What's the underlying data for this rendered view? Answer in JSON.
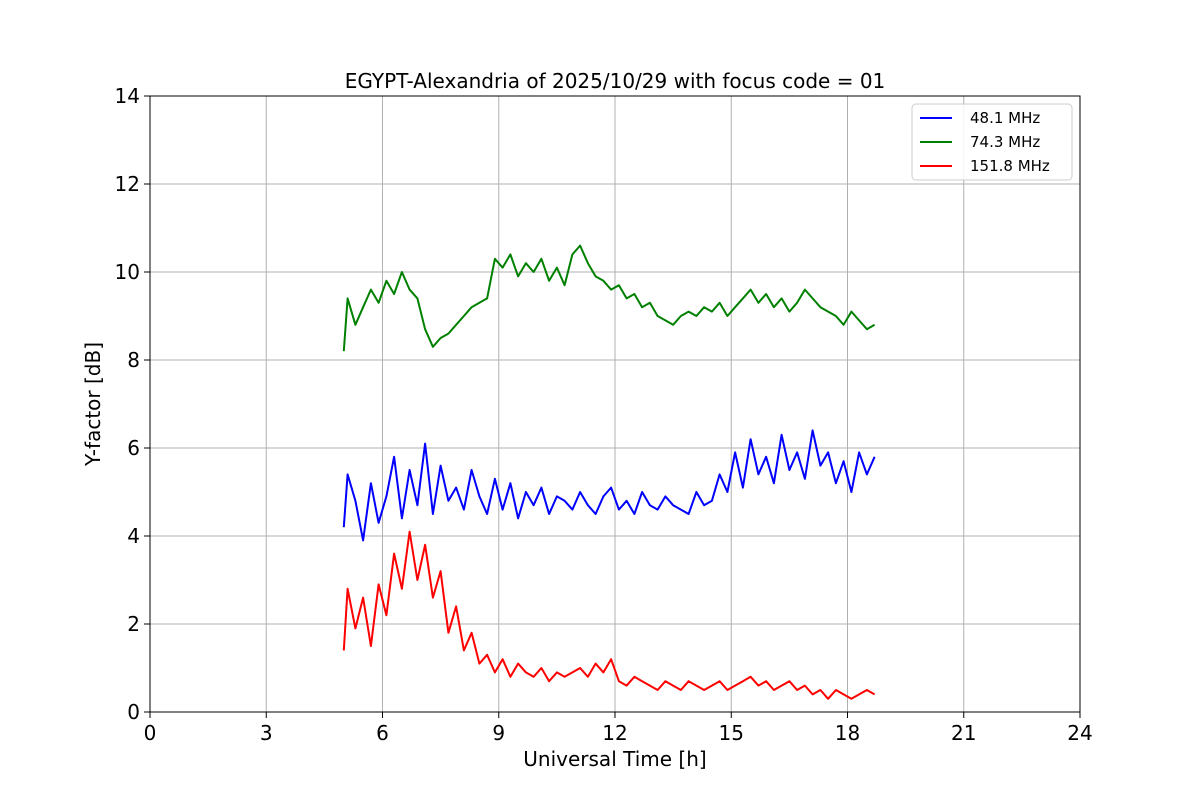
{
  "chart_data": {
    "type": "line",
    "title": "EGYPT-Alexandria of 2025/10/29 with focus code = 01",
    "xlabel": "Universal Time [h]",
    "ylabel": "Y-factor [dB]",
    "xlim": [
      0,
      24
    ],
    "ylim": [
      0,
      14
    ],
    "xticks": [
      0,
      3,
      6,
      9,
      12,
      15,
      18,
      21,
      24
    ],
    "yticks": [
      0,
      2,
      4,
      6,
      8,
      10,
      12,
      14
    ],
    "grid": true,
    "legend_position": "top-right",
    "series": [
      {
        "name": "48.1 MHz",
        "color": "#0000ff",
        "x": [
          5.0,
          5.1,
          5.3,
          5.5,
          5.7,
          5.9,
          6.1,
          6.3,
          6.5,
          6.7,
          6.9,
          7.1,
          7.3,
          7.5,
          7.7,
          7.9,
          8.1,
          8.3,
          8.5,
          8.7,
          8.9,
          9.1,
          9.3,
          9.5,
          9.7,
          9.9,
          10.1,
          10.3,
          10.5,
          10.7,
          10.9,
          11.1,
          11.3,
          11.5,
          11.7,
          11.9,
          12.1,
          12.3,
          12.5,
          12.7,
          12.9,
          13.1,
          13.3,
          13.5,
          13.7,
          13.9,
          14.1,
          14.3,
          14.5,
          14.7,
          14.9,
          15.1,
          15.3,
          15.5,
          15.7,
          15.9,
          16.1,
          16.3,
          16.5,
          16.7,
          16.9,
          17.1,
          17.3,
          17.5,
          17.7,
          17.9,
          18.1,
          18.3,
          18.5,
          18.7
        ],
        "y": [
          4.2,
          5.4,
          4.8,
          3.9,
          5.2,
          4.3,
          4.9,
          5.8,
          4.4,
          5.5,
          4.7,
          6.1,
          4.5,
          5.6,
          4.8,
          5.1,
          4.6,
          5.5,
          4.9,
          4.5,
          5.3,
          4.6,
          5.2,
          4.4,
          5.0,
          4.7,
          5.1,
          4.5,
          4.9,
          4.8,
          4.6,
          5.0,
          4.7,
          4.5,
          4.9,
          5.1,
          4.6,
          4.8,
          4.5,
          5.0,
          4.7,
          4.6,
          4.9,
          4.7,
          4.6,
          4.5,
          5.0,
          4.7,
          4.8,
          5.4,
          5.0,
          5.9,
          5.1,
          6.2,
          5.4,
          5.8,
          5.2,
          6.3,
          5.5,
          5.9,
          5.3,
          6.4,
          5.6,
          5.9,
          5.2,
          5.7,
          5.0,
          5.9,
          5.4,
          5.8
        ]
      },
      {
        "name": "74.3 MHz",
        "color": "#008000",
        "x": [
          5.0,
          5.1,
          5.3,
          5.5,
          5.7,
          5.9,
          6.1,
          6.3,
          6.5,
          6.7,
          6.9,
          7.1,
          7.3,
          7.5,
          7.7,
          7.9,
          8.1,
          8.3,
          8.5,
          8.7,
          8.9,
          9.1,
          9.3,
          9.5,
          9.7,
          9.9,
          10.1,
          10.3,
          10.5,
          10.7,
          10.9,
          11.1,
          11.3,
          11.5,
          11.7,
          11.9,
          12.1,
          12.3,
          12.5,
          12.7,
          12.9,
          13.1,
          13.3,
          13.5,
          13.7,
          13.9,
          14.1,
          14.3,
          14.5,
          14.7,
          14.9,
          15.1,
          15.3,
          15.5,
          15.7,
          15.9,
          16.1,
          16.3,
          16.5,
          16.7,
          16.9,
          17.1,
          17.3,
          17.5,
          17.7,
          17.9,
          18.1,
          18.3,
          18.5,
          18.7
        ],
        "y": [
          8.2,
          9.4,
          8.8,
          9.2,
          9.6,
          9.3,
          9.8,
          9.5,
          10.0,
          9.6,
          9.4,
          8.7,
          8.3,
          8.5,
          8.6,
          8.8,
          9.0,
          9.2,
          9.3,
          9.4,
          10.3,
          10.1,
          10.4,
          9.9,
          10.2,
          10.0,
          10.3,
          9.8,
          10.1,
          9.7,
          10.4,
          10.6,
          10.2,
          9.9,
          9.8,
          9.6,
          9.7,
          9.4,
          9.5,
          9.2,
          9.3,
          9.0,
          8.9,
          8.8,
          9.0,
          9.1,
          9.0,
          9.2,
          9.1,
          9.3,
          9.0,
          9.2,
          9.4,
          9.6,
          9.3,
          9.5,
          9.2,
          9.4,
          9.1,
          9.3,
          9.6,
          9.4,
          9.2,
          9.1,
          9.0,
          8.8,
          9.1,
          8.9,
          8.7,
          8.8
        ]
      },
      {
        "name": "151.8 MHz",
        "color": "#ff0000",
        "x": [
          5.0,
          5.1,
          5.3,
          5.5,
          5.7,
          5.9,
          6.1,
          6.3,
          6.5,
          6.7,
          6.9,
          7.1,
          7.3,
          7.5,
          7.7,
          7.9,
          8.1,
          8.3,
          8.5,
          8.7,
          8.9,
          9.1,
          9.3,
          9.5,
          9.7,
          9.9,
          10.1,
          10.3,
          10.5,
          10.7,
          10.9,
          11.1,
          11.3,
          11.5,
          11.7,
          11.9,
          12.1,
          12.3,
          12.5,
          12.7,
          12.9,
          13.1,
          13.3,
          13.5,
          13.7,
          13.9,
          14.1,
          14.3,
          14.5,
          14.7,
          14.9,
          15.1,
          15.3,
          15.5,
          15.7,
          15.9,
          16.1,
          16.3,
          16.5,
          16.7,
          16.9,
          17.1,
          17.3,
          17.5,
          17.7,
          17.9,
          18.1,
          18.3,
          18.5,
          18.7
        ],
        "y": [
          1.4,
          2.8,
          1.9,
          2.6,
          1.5,
          2.9,
          2.2,
          3.6,
          2.8,
          4.1,
          3.0,
          3.8,
          2.6,
          3.2,
          1.8,
          2.4,
          1.4,
          1.8,
          1.1,
          1.3,
          0.9,
          1.2,
          0.8,
          1.1,
          0.9,
          0.8,
          1.0,
          0.7,
          0.9,
          0.8,
          0.9,
          1.0,
          0.8,
          1.1,
          0.9,
          1.2,
          0.7,
          0.6,
          0.8,
          0.7,
          0.6,
          0.5,
          0.7,
          0.6,
          0.5,
          0.7,
          0.6,
          0.5,
          0.6,
          0.7,
          0.5,
          0.6,
          0.7,
          0.8,
          0.6,
          0.7,
          0.5,
          0.6,
          0.7,
          0.5,
          0.6,
          0.4,
          0.5,
          0.3,
          0.5,
          0.4,
          0.3,
          0.4,
          0.5,
          0.4
        ]
      }
    ]
  }
}
